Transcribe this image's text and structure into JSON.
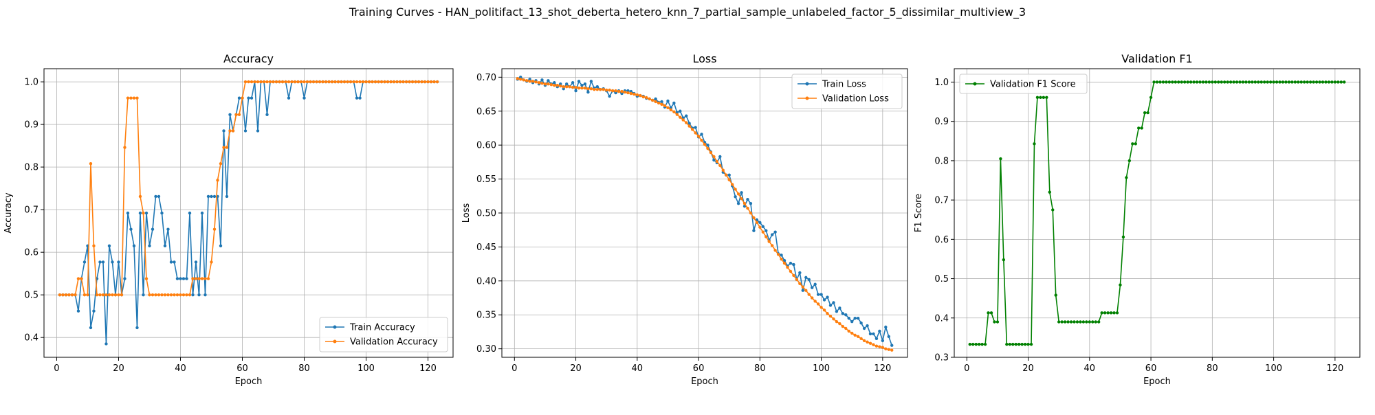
{
  "figure": {
    "title": "Training Curves - HAN_politifact_13_shot_deberta_hetero_knn_7_partial_sample_unlabeled_factor_5_dissimilar_multiview_3"
  },
  "chart_data": [
    {
      "type": "line",
      "title": "Accuracy",
      "xlabel": "Epoch",
      "ylabel": "Accuracy",
      "xlim": [
        -4.1,
        128.1
      ],
      "ylim": [
        0.3535,
        1.0308
      ],
      "xticks": [
        0,
        20,
        40,
        60,
        80,
        100,
        120
      ],
      "yticks": [
        0.4,
        0.5,
        0.6,
        0.7,
        0.8,
        0.9,
        1.0
      ],
      "ytick_labels": [
        "0.4",
        "0.5",
        "0.6",
        "0.7",
        "0.8",
        "0.9",
        "1.0"
      ],
      "grid": true,
      "legend_position": "lower-right",
      "x": [
        1,
        2,
        3,
        4,
        5,
        6,
        7,
        8,
        9,
        10,
        11,
        12,
        13,
        14,
        15,
        16,
        17,
        18,
        19,
        20,
        21,
        22,
        23,
        24,
        25,
        26,
        27,
        28,
        29,
        30,
        31,
        32,
        33,
        34,
        35,
        36,
        37,
        38,
        39,
        40,
        41,
        42,
        43,
        44,
        45,
        46,
        47,
        48,
        49,
        50,
        51,
        52,
        53,
        54,
        55,
        56,
        57,
        58,
        59,
        60,
        61,
        62,
        63,
        64,
        65,
        66,
        67,
        68,
        69,
        70,
        71,
        72,
        73,
        74,
        75,
        76,
        77,
        78,
        79,
        80,
        81,
        82,
        83,
        84,
        85,
        86,
        87,
        88,
        89,
        90,
        91,
        92,
        93,
        94,
        95,
        96,
        97,
        98,
        99,
        100,
        101,
        102,
        103,
        104,
        105,
        106,
        107,
        108,
        109,
        110,
        111,
        112,
        113,
        114,
        115,
        116,
        117,
        118,
        119,
        120,
        121,
        122,
        123
      ],
      "series": [
        {
          "name": "Train Accuracy",
          "color": "#1f77b4",
          "values": [
            0.5,
            0.5,
            0.5,
            0.5,
            0.5,
            0.5,
            0.462,
            0.538,
            0.577,
            0.615,
            0.423,
            0.462,
            0.538,
            0.577,
            0.577,
            0.385,
            0.615,
            0.577,
            0.5,
            0.577,
            0.5,
            0.538,
            0.692,
            0.654,
            0.615,
            0.423,
            0.692,
            0.5,
            0.692,
            0.615,
            0.654,
            0.731,
            0.731,
            0.692,
            0.615,
            0.654,
            0.577,
            0.577,
            0.538,
            0.538,
            0.538,
            0.538,
            0.692,
            0.5,
            0.577,
            0.5,
            0.692,
            0.5,
            0.731,
            0.731,
            0.731,
            0.731,
            0.615,
            0.885,
            0.731,
            0.923,
            0.885,
            0.923,
            0.962,
            0.962,
            0.885,
            0.962,
            0.962,
            1.0,
            0.885,
            1.0,
            1.0,
            0.923,
            1.0,
            1.0,
            1.0,
            1.0,
            1.0,
            1.0,
            0.962,
            1.0,
            1.0,
            1.0,
            1.0,
            0.962,
            1.0,
            1.0,
            1.0,
            1.0,
            1.0,
            1.0,
            1.0,
            1.0,
            1.0,
            1.0,
            1.0,
            1.0,
            1.0,
            1.0,
            1.0,
            1.0,
            0.962,
            0.962,
            1.0,
            1.0,
            1.0,
            1.0,
            1.0,
            1.0,
            1.0,
            1.0,
            1.0,
            1.0,
            1.0,
            1.0,
            1.0,
            1.0,
            1.0,
            1.0,
            1.0,
            1.0,
            1.0,
            1.0,
            1.0,
            1.0,
            1.0,
            1.0,
            1.0
          ]
        },
        {
          "name": "Validation Accuracy",
          "color": "#ff7f0e",
          "values": [
            0.5,
            0.5,
            0.5,
            0.5,
            0.5,
            0.5,
            0.538,
            0.538,
            0.5,
            0.5,
            0.808,
            0.615,
            0.5,
            0.5,
            0.5,
            0.5,
            0.5,
            0.5,
            0.5,
            0.5,
            0.5,
            0.846,
            0.962,
            0.962,
            0.962,
            0.962,
            0.731,
            0.692,
            0.538,
            0.5,
            0.5,
            0.5,
            0.5,
            0.5,
            0.5,
            0.5,
            0.5,
            0.5,
            0.5,
            0.5,
            0.5,
            0.5,
            0.5,
            0.538,
            0.538,
            0.538,
            0.538,
            0.538,
            0.538,
            0.577,
            0.654,
            0.769,
            0.808,
            0.846,
            0.846,
            0.885,
            0.885,
            0.923,
            0.923,
            0.962,
            1.0,
            1.0,
            1.0,
            1.0,
            1.0,
            1.0,
            1.0,
            1.0,
            1.0,
            1.0,
            1.0,
            1.0,
            1.0,
            1.0,
            1.0,
            1.0,
            1.0,
            1.0,
            1.0,
            1.0,
            1.0,
            1.0,
            1.0,
            1.0,
            1.0,
            1.0,
            1.0,
            1.0,
            1.0,
            1.0,
            1.0,
            1.0,
            1.0,
            1.0,
            1.0,
            1.0,
            1.0,
            1.0,
            1.0,
            1.0,
            1.0,
            1.0,
            1.0,
            1.0,
            1.0,
            1.0,
            1.0,
            1.0,
            1.0,
            1.0,
            1.0,
            1.0,
            1.0,
            1.0,
            1.0,
            1.0,
            1.0,
            1.0,
            1.0,
            1.0,
            1.0,
            1.0,
            1.0
          ]
        }
      ]
    },
    {
      "type": "line",
      "title": "Loss",
      "xlabel": "Epoch",
      "ylabel": "Loss",
      "xlim": [
        -4.1,
        128.1
      ],
      "ylim": [
        0.2875,
        0.7125
      ],
      "xticks": [
        0,
        20,
        40,
        60,
        80,
        100,
        120
      ],
      "yticks": [
        0.3,
        0.35,
        0.4,
        0.45,
        0.5,
        0.55,
        0.6,
        0.65,
        0.7
      ],
      "ytick_labels": [
        "0.30",
        "0.35",
        "0.40",
        "0.45",
        "0.50",
        "0.55",
        "0.60",
        "0.65",
        "0.70"
      ],
      "grid": true,
      "legend_position": "upper-right",
      "x": [
        1,
        2,
        3,
        4,
        5,
        6,
        7,
        8,
        9,
        10,
        11,
        12,
        13,
        14,
        15,
        16,
        17,
        18,
        19,
        20,
        21,
        22,
        23,
        24,
        25,
        26,
        27,
        28,
        29,
        30,
        31,
        32,
        33,
        34,
        35,
        36,
        37,
        38,
        39,
        40,
        41,
        42,
        43,
        44,
        45,
        46,
        47,
        48,
        49,
        50,
        51,
        52,
        53,
        54,
        55,
        56,
        57,
        58,
        59,
        60,
        61,
        62,
        63,
        64,
        65,
        66,
        67,
        68,
        69,
        70,
        71,
        72,
        73,
        74,
        75,
        76,
        77,
        78,
        79,
        80,
        81,
        82,
        83,
        84,
        85,
        86,
        87,
        88,
        89,
        90,
        91,
        92,
        93,
        94,
        95,
        96,
        97,
        98,
        99,
        100,
        101,
        102,
        103,
        104,
        105,
        106,
        107,
        108,
        109,
        110,
        111,
        112,
        113,
        114,
        115,
        116,
        117,
        118,
        119,
        120,
        121,
        122,
        123
      ],
      "series": [
        {
          "name": "Train Loss",
          "color": "#1f77b4",
          "values": [
            0.697,
            0.7,
            0.696,
            0.694,
            0.697,
            0.692,
            0.695,
            0.69,
            0.696,
            0.688,
            0.695,
            0.69,
            0.692,
            0.686,
            0.69,
            0.683,
            0.69,
            0.686,
            0.692,
            0.68,
            0.694,
            0.688,
            0.69,
            0.678,
            0.694,
            0.684,
            0.686,
            0.682,
            0.683,
            0.68,
            0.672,
            0.68,
            0.677,
            0.68,
            0.676,
            0.68,
            0.68,
            0.679,
            0.676,
            0.672,
            0.673,
            0.672,
            0.669,
            0.668,
            0.666,
            0.668,
            0.663,
            0.664,
            0.656,
            0.665,
            0.655,
            0.662,
            0.648,
            0.65,
            0.64,
            0.643,
            0.632,
            0.625,
            0.626,
            0.612,
            0.616,
            0.604,
            0.6,
            0.59,
            0.578,
            0.574,
            0.583,
            0.56,
            0.556,
            0.556,
            0.54,
            0.524,
            0.514,
            0.53,
            0.51,
            0.52,
            0.514,
            0.474,
            0.49,
            0.486,
            0.48,
            0.474,
            0.46,
            0.468,
            0.472,
            0.44,
            0.438,
            0.43,
            0.422,
            0.426,
            0.424,
            0.402,
            0.412,
            0.386,
            0.405,
            0.402,
            0.39,
            0.395,
            0.38,
            0.38,
            0.372,
            0.376,
            0.364,
            0.368,
            0.355,
            0.36,
            0.352,
            0.35,
            0.345,
            0.34,
            0.345,
            0.345,
            0.338,
            0.33,
            0.334,
            0.322,
            0.322,
            0.315,
            0.326,
            0.312,
            0.332,
            0.318,
            0.305
          ]
        },
        {
          "name": "Validation Loss",
          "color": "#ff7f0e",
          "values": [
            0.698,
            0.697,
            0.696,
            0.695,
            0.694,
            0.694,
            0.693,
            0.692,
            0.691,
            0.69,
            0.69,
            0.689,
            0.688,
            0.688,
            0.687,
            0.686,
            0.686,
            0.686,
            0.685,
            0.685,
            0.684,
            0.684,
            0.684,
            0.683,
            0.683,
            0.682,
            0.682,
            0.682,
            0.682,
            0.681,
            0.681,
            0.68,
            0.68,
            0.679,
            0.679,
            0.678,
            0.677,
            0.676,
            0.675,
            0.674,
            0.673,
            0.671,
            0.67,
            0.668,
            0.666,
            0.664,
            0.662,
            0.66,
            0.658,
            0.655,
            0.652,
            0.649,
            0.645,
            0.641,
            0.637,
            0.633,
            0.628,
            0.623,
            0.618,
            0.613,
            0.607,
            0.601,
            0.595,
            0.589,
            0.583,
            0.576,
            0.57,
            0.563,
            0.556,
            0.549,
            0.542,
            0.535,
            0.528,
            0.521,
            0.514,
            0.507,
            0.5,
            0.493,
            0.486,
            0.479,
            0.472,
            0.465,
            0.458,
            0.452,
            0.445,
            0.439,
            0.432,
            0.426,
            0.42,
            0.414,
            0.408,
            0.402,
            0.396,
            0.391,
            0.386,
            0.38,
            0.375,
            0.37,
            0.366,
            0.361,
            0.357,
            0.352,
            0.348,
            0.344,
            0.34,
            0.337,
            0.333,
            0.33,
            0.326,
            0.323,
            0.32,
            0.318,
            0.315,
            0.312,
            0.31,
            0.308,
            0.306,
            0.304,
            0.303,
            0.302,
            0.3,
            0.299,
            0.298
          ]
        }
      ]
    },
    {
      "type": "line",
      "title": "Validation F1",
      "xlabel": "Epoch",
      "ylabel": "F1 Score",
      "xlim": [
        -4.1,
        128.1
      ],
      "ylim": [
        0.3,
        1.034
      ],
      "xticks": [
        0,
        20,
        40,
        60,
        80,
        100,
        120
      ],
      "yticks": [
        0.3,
        0.4,
        0.5,
        0.6,
        0.7,
        0.8,
        0.9,
        1.0
      ],
      "ytick_labels": [
        "0.3",
        "0.4",
        "0.5",
        "0.6",
        "0.7",
        "0.8",
        "0.9",
        "1.0"
      ],
      "grid": true,
      "legend_position": "upper-left",
      "x": [
        1,
        2,
        3,
        4,
        5,
        6,
        7,
        8,
        9,
        10,
        11,
        12,
        13,
        14,
        15,
        16,
        17,
        18,
        19,
        20,
        21,
        22,
        23,
        24,
        25,
        26,
        27,
        28,
        29,
        30,
        31,
        32,
        33,
        34,
        35,
        36,
        37,
        38,
        39,
        40,
        41,
        42,
        43,
        44,
        45,
        46,
        47,
        48,
        49,
        50,
        51,
        52,
        53,
        54,
        55,
        56,
        57,
        58,
        59,
        60,
        61,
        62,
        63,
        64,
        65,
        66,
        67,
        68,
        69,
        70,
        71,
        72,
        73,
        74,
        75,
        76,
        77,
        78,
        79,
        80,
        81,
        82,
        83,
        84,
        85,
        86,
        87,
        88,
        89,
        90,
        91,
        92,
        93,
        94,
        95,
        96,
        97,
        98,
        99,
        100,
        101,
        102,
        103,
        104,
        105,
        106,
        107,
        108,
        109,
        110,
        111,
        112,
        113,
        114,
        115,
        116,
        117,
        118,
        119,
        120,
        121,
        122,
        123
      ],
      "series": [
        {
          "name": "Validation F1 Score",
          "color": "#008000",
          "values": [
            0.333,
            0.333,
            0.333,
            0.333,
            0.333,
            0.333,
            0.413,
            0.413,
            0.39,
            0.39,
            0.805,
            0.548,
            0.333,
            0.333,
            0.333,
            0.333,
            0.333,
            0.333,
            0.333,
            0.333,
            0.333,
            0.843,
            0.961,
            0.961,
            0.961,
            0.961,
            0.72,
            0.675,
            0.458,
            0.39,
            0.39,
            0.39,
            0.39,
            0.39,
            0.39,
            0.39,
            0.39,
            0.39,
            0.39,
            0.39,
            0.39,
            0.39,
            0.39,
            0.413,
            0.413,
            0.413,
            0.413,
            0.413,
            0.413,
            0.484,
            0.606,
            0.757,
            0.8,
            0.843,
            0.843,
            0.883,
            0.883,
            0.922,
            0.922,
            0.961,
            1.0,
            1.0,
            1.0,
            1.0,
            1.0,
            1.0,
            1.0,
            1.0,
            1.0,
            1.0,
            1.0,
            1.0,
            1.0,
            1.0,
            1.0,
            1.0,
            1.0,
            1.0,
            1.0,
            1.0,
            1.0,
            1.0,
            1.0,
            1.0,
            1.0,
            1.0,
            1.0,
            1.0,
            1.0,
            1.0,
            1.0,
            1.0,
            1.0,
            1.0,
            1.0,
            1.0,
            1.0,
            1.0,
            1.0,
            1.0,
            1.0,
            1.0,
            1.0,
            1.0,
            1.0,
            1.0,
            1.0,
            1.0,
            1.0,
            1.0,
            1.0,
            1.0,
            1.0,
            1.0,
            1.0,
            1.0,
            1.0,
            1.0,
            1.0,
            1.0,
            1.0,
            1.0,
            1.0
          ]
        }
      ]
    }
  ]
}
